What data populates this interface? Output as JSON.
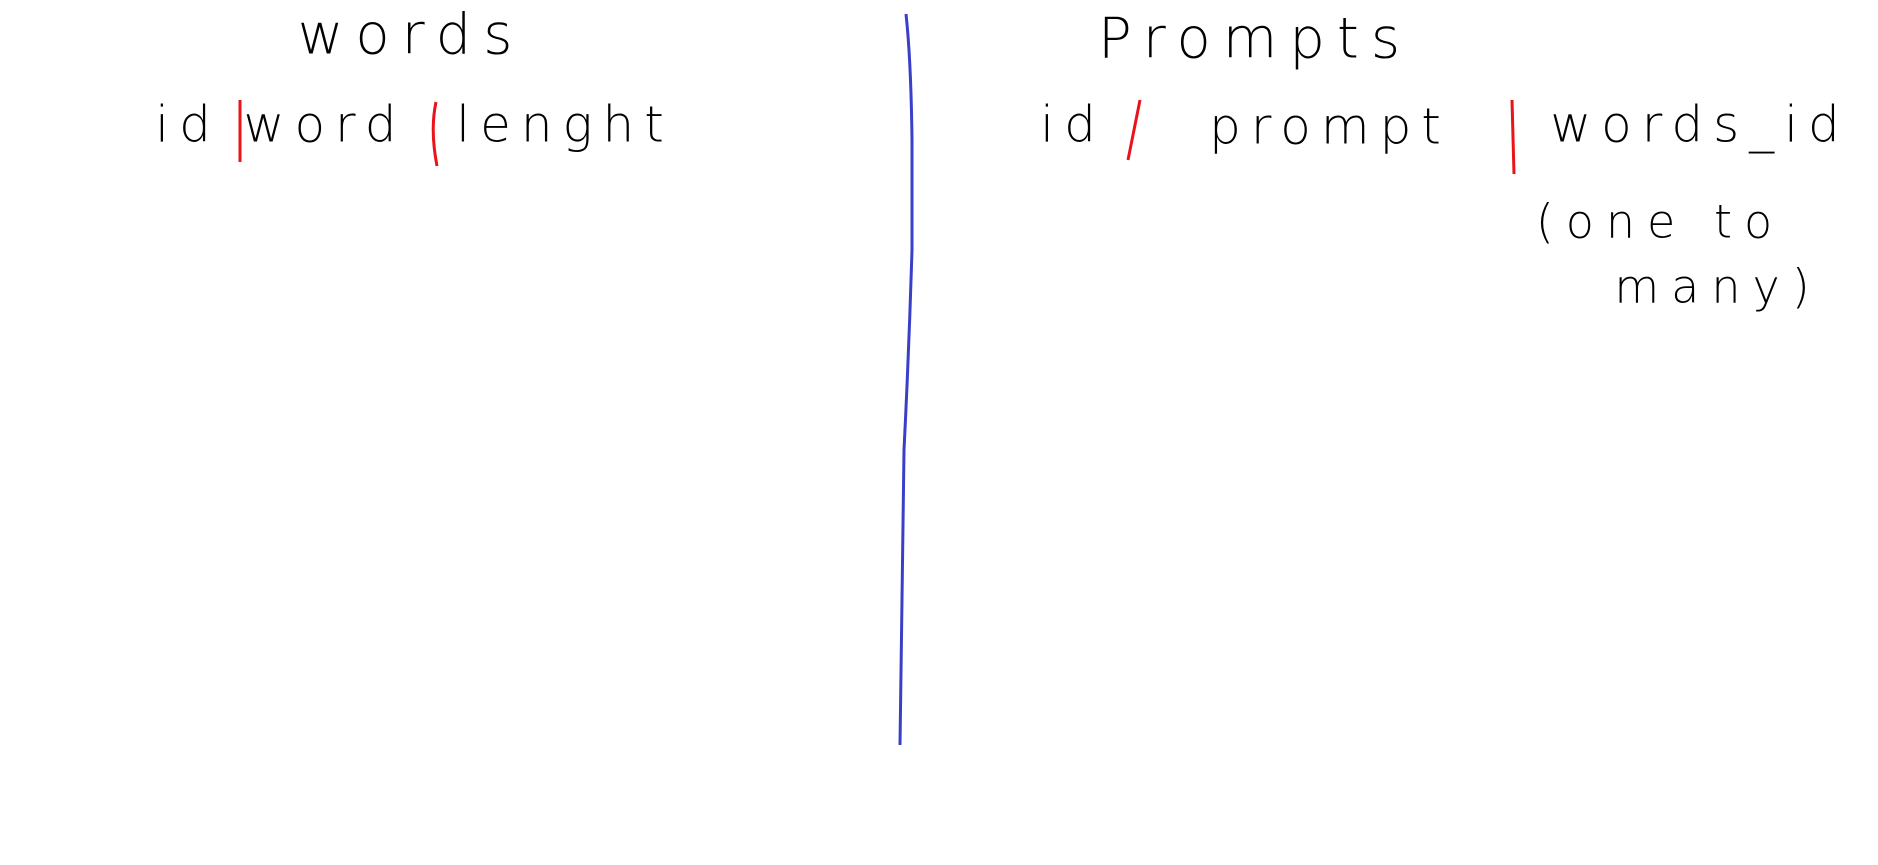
{
  "words_table": {
    "title": "words",
    "columns": [
      "id",
      "word",
      "lenght"
    ]
  },
  "prompts_table": {
    "title": "Prompts",
    "columns": [
      "id",
      "prompt",
      "words_id"
    ],
    "note": [
      "(one to",
      "many)"
    ]
  }
}
